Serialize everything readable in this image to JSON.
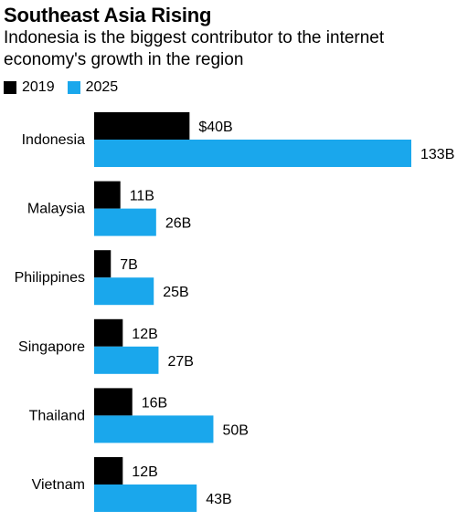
{
  "title": "Southeast Asia Rising",
  "subtitle": "Indonesia is the biggest contributor to the internet economy's growth in the region",
  "colors": {
    "s2019": "#000000",
    "s2025": "#1aa7ec"
  },
  "legend": [
    {
      "label": "2019",
      "color": "#000000"
    },
    {
      "label": "2025",
      "color": "#1aa7ec"
    }
  ],
  "chart_data": {
    "type": "bar",
    "orientation": "horizontal",
    "title": "Southeast Asia Rising",
    "subtitle": "Indonesia is the biggest contributor to the internet economy's growth in the region",
    "categories": [
      "Indonesia",
      "Malaysia",
      "Philippines",
      "Singapore",
      "Thailand",
      "Vietnam"
    ],
    "series": [
      {
        "name": "2019",
        "values": [
          40,
          11,
          7,
          12,
          16,
          12
        ],
        "labels": [
          "$40B",
          "11B",
          "7B",
          "12B",
          "16B",
          "12B"
        ]
      },
      {
        "name": "2025",
        "values": [
          133,
          26,
          25,
          27,
          50,
          43
        ],
        "labels": [
          "133B",
          "26B",
          "25B",
          "27B",
          "50B",
          "43B"
        ]
      }
    ],
    "xlim": [
      0,
      133
    ],
    "grid": false,
    "legend_position": "top-left"
  }
}
